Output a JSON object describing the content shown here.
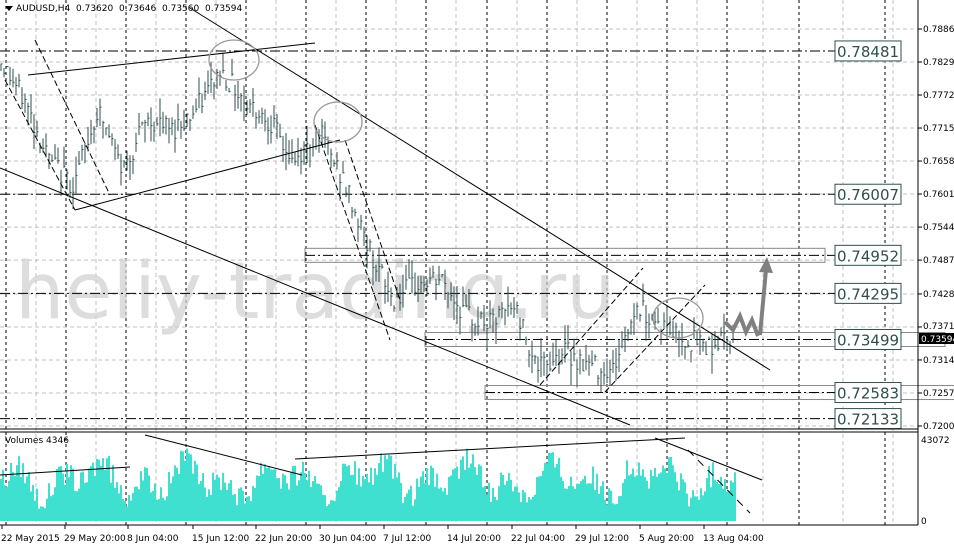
{
  "header": {
    "symbol": "AUDUSD,H4",
    "open": "0.73620",
    "high": "0.73646",
    "low": "0.73560",
    "close": "0.73594",
    "icon": "triangle-down-icon"
  },
  "watermark": "heliy-trading.ru",
  "volume_pane": {
    "label": "Volumes 4346",
    "max_label": "43072",
    "min_label": "0"
  },
  "colors": {
    "bars": "#2f4f4f",
    "volume": "#40e0d0",
    "grid": "#c0c0c0",
    "arrow": "#808080",
    "current_price_bg": "#000000"
  },
  "chart_data": {
    "type": "ohlc",
    "title": "AUDUSD,H4",
    "y_ticks": [
      "0.78860",
      "0.78290",
      "0.77720",
      "0.77150",
      "0.76580",
      "0.76010",
      "0.75440",
      "0.74870",
      "0.74285",
      "0.73715",
      "0.73145",
      "0.72575",
      "0.72005"
    ],
    "ylim": [
      0.72005,
      0.7886
    ],
    "x_ticks": [
      "22 May 2015",
      "29 May 20:00",
      "8 Jun 04:00",
      "15 Jun 12:00",
      "22 Jun 20:00",
      "30 Jun 04:00",
      "7 Jul 12:00",
      "14 Jul 20:00",
      "22 Jul 04:00",
      "29 Jul 12:00",
      "5 Aug 20:00",
      "13 Aug 04:00"
    ],
    "price_path": [
      0.7832,
      0.7763,
      0.766,
      0.7617,
      0.7746,
      0.7642,
      0.7729,
      0.7712,
      0.7746,
      0.7815,
      0.7763,
      0.7729,
      0.7651,
      0.7712,
      0.7625,
      0.7513,
      0.7418,
      0.7444,
      0.7453,
      0.7392,
      0.7375,
      0.7409,
      0.7297,
      0.7332,
      0.7306,
      0.7297,
      0.7409,
      0.7375,
      0.735,
      0.734,
      0.7359
    ],
    "current_price": "0.73594",
    "levels": [
      "0.78481",
      "0.76007",
      "0.74952",
      "0.74295",
      "0.73499",
      "0.72583",
      "0.72133"
    ],
    "volume_max": 43072,
    "grid": true
  }
}
